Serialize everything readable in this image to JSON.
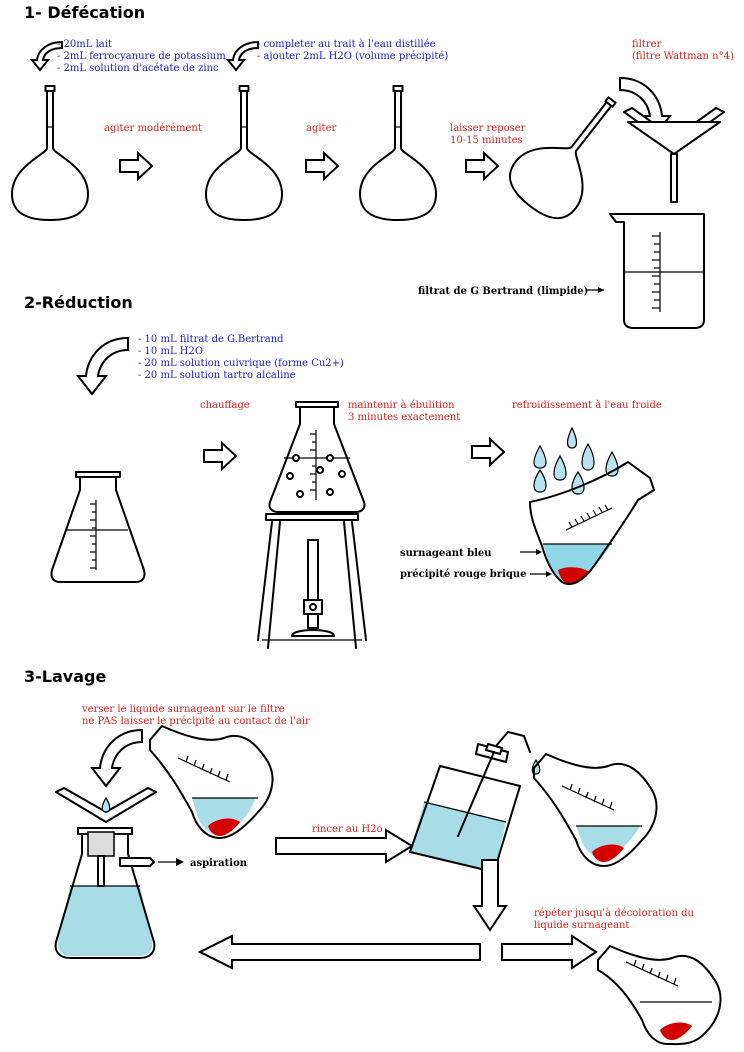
{
  "sections": {
    "defecation": {
      "title": "1- Défécation"
    },
    "reduction": {
      "title": "2-Réduction"
    },
    "lavage": {
      "title": "3-Lavage"
    }
  },
  "defecation": {
    "reagents_1": [
      "- 20mL lait",
      "- 2mL ferrocyanure de potassium",
      "- 2mL solution d'acétate de zinc"
    ],
    "reagents_2": [
      "- completer au trait à l'eau distillée",
      "- ajouter 2mL H2O (volume précipité)"
    ],
    "step_agiter_moderement": "agiter modérément",
    "step_agiter": "agiter",
    "step_laisser": [
      "laisser reposer",
      "10-15 minutes"
    ],
    "step_filtrer": [
      "filtrer",
      "(filtre Wattman n°4)"
    ],
    "label_filtrat": "filtrat de G Bertrand (limpide)"
  },
  "reduction": {
    "reagents": [
      "- 10 mL filtrat de G.Bertrand",
      "- 10 mL H2O",
      "- 20 mL solution cuivrique (forme Cu2+)",
      "- 20 mL solution tartro alcaline"
    ],
    "step_chauffage": "chauffage",
    "step_ebullition": [
      "maintenir à ébulition",
      "3 minutes exactement"
    ],
    "step_refroidissement": "refroidissement à l'eau froide",
    "label_surnageant": "surnageant bleu",
    "label_precipite": "précipité rouge brique"
  },
  "lavage": {
    "instructions": [
      "verser le liquide surnageant sur le filtre",
      "ne PAS laisser le précipité au contact de l'air"
    ],
    "label_aspiration": "aspiration",
    "step_rincer": "rincer au H2o",
    "step_repeter": [
      "répéter jusqu'à décoloration du",
      "liquide surnageant"
    ]
  },
  "colors": {
    "reagent_text": "#1a1ad6",
    "step_text": "#e01b1b",
    "liquid_blue": "#a8dde8",
    "precipitate_red": "#d40000"
  }
}
